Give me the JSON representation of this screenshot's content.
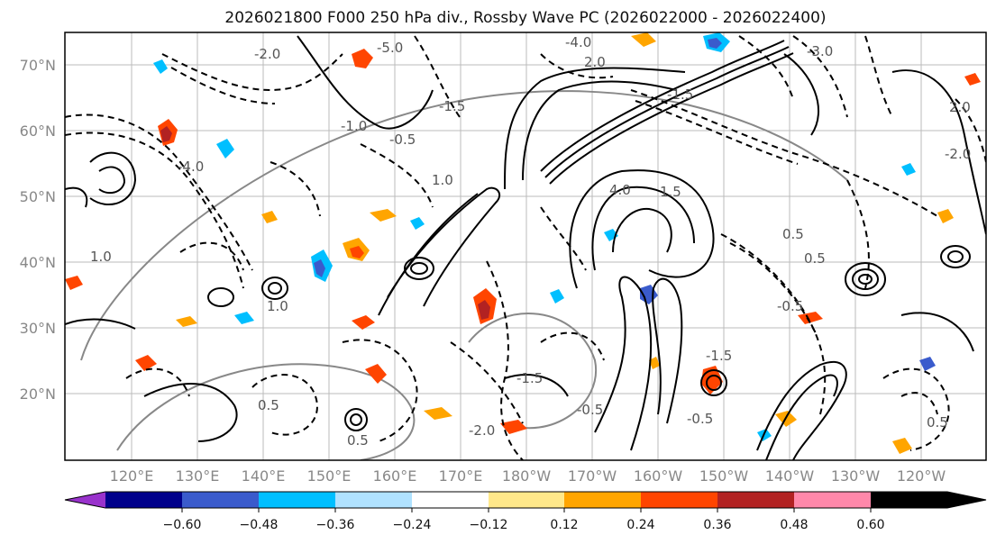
{
  "title": "2026021800 F000 250 hPa div., Rossby Wave PC (2026022000 - 2026022400)",
  "map": {
    "lat_labels": [
      "70°N",
      "60°N",
      "50°N",
      "40°N",
      "30°N",
      "20°N"
    ],
    "lon_labels": [
      "120°E",
      "130°E",
      "140°E",
      "150°E",
      "160°E",
      "170°E",
      "180°W",
      "170°W",
      "160°W",
      "150°W",
      "140°W",
      "130°W",
      "120°W"
    ],
    "contour_labels": [
      "-5.0",
      "-4.0",
      "2.0",
      "-3.0",
      "2.0",
      "-1.5",
      "-1.0",
      "1.0",
      "-0.5",
      "0.5",
      "-0.5",
      "1.5",
      "0.5",
      "-1.5",
      "1.0",
      "-2.0",
      "-4.0",
      "1.0",
      "-0.5",
      "0.5",
      "-1.5",
      "0.5",
      "-2.0",
      "0.5",
      "4.0",
      "-1.5",
      "-2.0",
      "-0.5"
    ]
  },
  "colorbar": {
    "tick_labels": [
      "−0.60",
      "−0.48",
      "−0.36",
      "−0.24",
      "−0.12",
      "0.12",
      "0.24",
      "0.36",
      "0.48",
      "0.60"
    ],
    "colors": [
      "#9932cc",
      "#00008b",
      "#3a5bcc",
      "#00bfff",
      "#b0e2ff",
      "#ffffff",
      "#ffe88a",
      "#ffa500",
      "#ff4500",
      "#b22222",
      "#ff88aa"
    ]
  }
}
